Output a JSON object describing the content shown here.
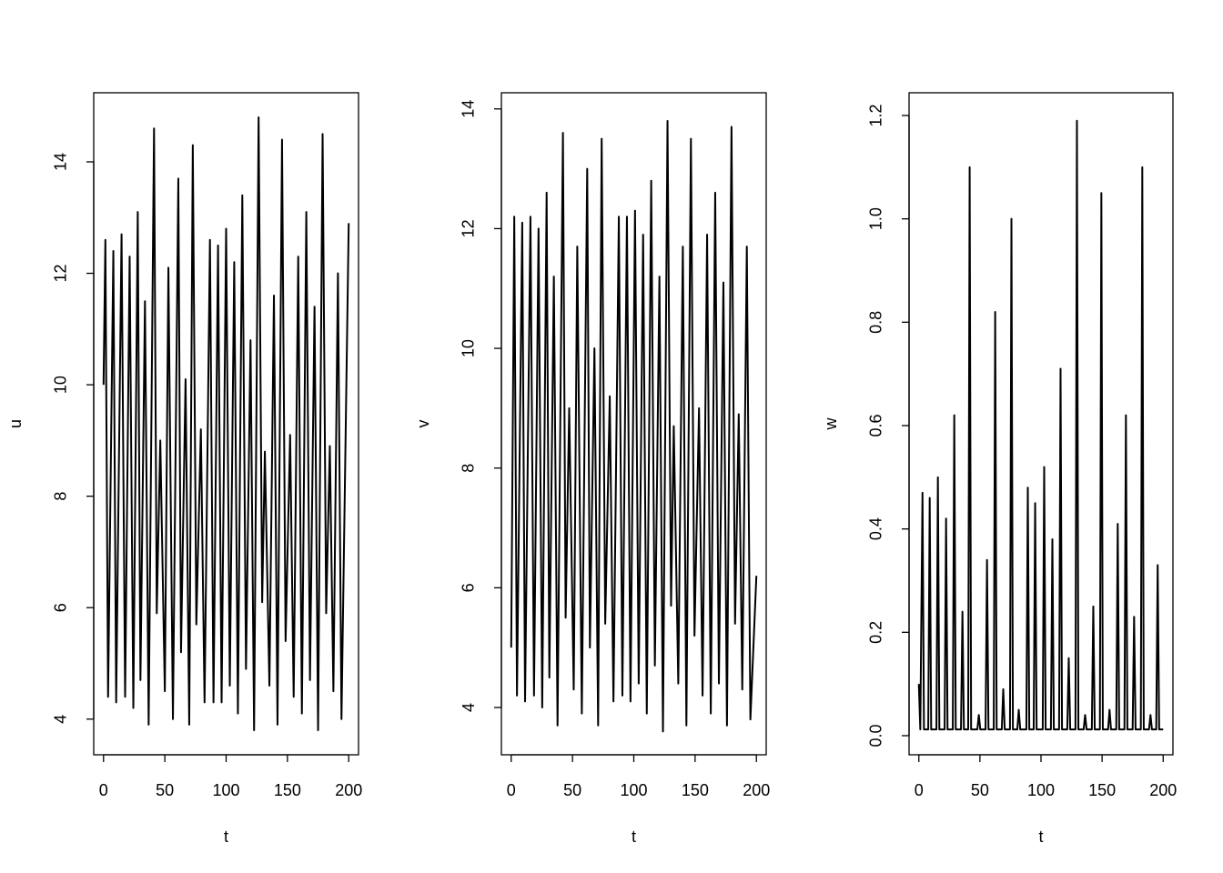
{
  "chart_data": [
    {
      "type": "line",
      "xlabel": "t",
      "ylabel": "u",
      "color": "#000000",
      "xlim": [
        -8,
        208
      ],
      "ylim": [
        3.36,
        15.24
      ],
      "xticks": [
        0,
        50,
        100,
        150,
        200
      ],
      "yticks": [
        4,
        6,
        8,
        10,
        12,
        14
      ],
      "x": [
        0,
        1.5,
        3.7,
        8,
        10.3,
        14.7,
        17.6,
        21.3,
        24.3,
        27.9,
        30.1,
        33.8,
        36.8,
        41.2,
        43.4,
        46.3,
        50,
        52.9,
        56.6,
        61,
        63.2,
        66.9,
        69.9,
        72.8,
        75.7,
        79.4,
        82.4,
        86.8,
        89.7,
        93.4,
        96.3,
        100,
        103,
        106.6,
        109.6,
        113.2,
        116.2,
        119.9,
        122.8,
        126.5,
        129.4,
        131.6,
        135.3,
        139,
        141.9,
        145.6,
        148.5,
        152.2,
        155.1,
        158.8,
        161.8,
        165.4,
        168.4,
        172.1,
        175,
        178.7,
        181.6,
        184.6,
        187.5,
        191.2,
        194.1,
        200
      ],
      "values": [
        10,
        12.6,
        4.4,
        12.4,
        4.3,
        12.7,
        4.4,
        12.3,
        4.2,
        13.1,
        4.7,
        11.5,
        3.9,
        14.6,
        5.9,
        9.0,
        4.5,
        12.1,
        4.0,
        13.7,
        5.2,
        10.1,
        3.9,
        14.3,
        5.7,
        9.2,
        4.3,
        12.6,
        4.3,
        12.5,
        4.3,
        12.8,
        4.6,
        12.2,
        4.1,
        13.4,
        4.9,
        10.8,
        3.8,
        14.8,
        6.1,
        8.8,
        4.6,
        11.6,
        3.9,
        14.4,
        5.4,
        9.1,
        4.4,
        12.3,
        4.1,
        13.1,
        4.7,
        11.4,
        3.8,
        14.5,
        5.9,
        8.9,
        4.5,
        12.0,
        4.0,
        12.9
      ]
    },
    {
      "type": "line",
      "xlabel": "t",
      "ylabel": "v",
      "color": "#000000",
      "xlim": [
        -8,
        208
      ],
      "ylim": [
        3.21,
        14.27
      ],
      "xticks": [
        0,
        50,
        100,
        150,
        200
      ],
      "yticks": [
        4,
        6,
        8,
        10,
        12,
        14
      ],
      "x": [
        0,
        2.5,
        4.7,
        9,
        11.3,
        15.7,
        18.6,
        22.3,
        25.3,
        28.9,
        31.1,
        34.8,
        37.8,
        42.2,
        44.4,
        47.3,
        51,
        53.9,
        57.6,
        62,
        64.2,
        67.9,
        70.9,
        73.8,
        76.7,
        80.4,
        83.4,
        87.8,
        90.7,
        94.4,
        97.3,
        101,
        104,
        107.6,
        110.6,
        114.2,
        117.2,
        120.9,
        123.8,
        127.5,
        130.4,
        132.6,
        136.3,
        140,
        142.9,
        146.6,
        149.5,
        153.2,
        156.1,
        159.8,
        162.8,
        166.4,
        169.4,
        173.1,
        176,
        179.7,
        182.6,
        185.6,
        188.5,
        192.2,
        195.1,
        200
      ],
      "values": [
        5,
        12.2,
        4.2,
        12.1,
        4.1,
        12.2,
        4.2,
        12.0,
        4.0,
        12.6,
        4.5,
        11.2,
        3.7,
        13.6,
        5.5,
        9.0,
        4.3,
        11.7,
        3.9,
        13.0,
        5.0,
        10.0,
        3.7,
        13.5,
        5.4,
        9.2,
        4.1,
        12.2,
        4.2,
        12.2,
        4.1,
        12.3,
        4.4,
        11.9,
        3.9,
        12.8,
        4.7,
        11.2,
        3.6,
        13.8,
        5.7,
        8.7,
        4.4,
        11.7,
        3.7,
        13.5,
        5.2,
        9.0,
        4.2,
        11.9,
        3.9,
        12.6,
        4.4,
        11.1,
        3.7,
        13.7,
        5.4,
        8.9,
        4.3,
        11.7,
        3.8,
        6.2
      ]
    },
    {
      "type": "line",
      "xlabel": "t",
      "ylabel": "w",
      "color": "#000000",
      "xlim": [
        -8,
        208
      ],
      "ylim": [
        -0.037,
        1.244
      ],
      "xticks": [
        0,
        50,
        100,
        150,
        200
      ],
      "yticks": [
        {
          "value": 0,
          "label": "0.0"
        },
        0.2,
        0.4,
        0.6,
        0.8,
        {
          "value": 1,
          "label": "1.0"
        },
        1.2
      ],
      "x": [
        0,
        1.2,
        3.0,
        4.2,
        7.7,
        8.9,
        10.1,
        14.4,
        15.6,
        16.8,
        21.1,
        22.3,
        23.5,
        27.8,
        29,
        30.2,
        34.5,
        35.7,
        36.9,
        40.4,
        41.6,
        42.8,
        47.9,
        49.1,
        50.3,
        54.6,
        55.8,
        57,
        61.3,
        62.5,
        63.7,
        67.9,
        69.1,
        70.3,
        74.6,
        75.8,
        77,
        80.6,
        81.8,
        83,
        88,
        89.2,
        90.4,
        94,
        95.2,
        96.4,
        101.4,
        102.6,
        103.8,
        108.1,
        109.3,
        110.5,
        114.8,
        116,
        117.2,
        121.5,
        122.7,
        123.9,
        128.2,
        129.4,
        130.6,
        134.9,
        136.1,
        137.3,
        141.6,
        142.8,
        144,
        148.2,
        149.4,
        150.6,
        154.9,
        156.1,
        157.3,
        161.6,
        162.8,
        164,
        168.3,
        169.5,
        170.7,
        175,
        176.2,
        177.4,
        181.7,
        182.9,
        184.1,
        188.4,
        189.6,
        190.8,
        194.3,
        195.5,
        196.7,
        200
      ],
      "values": [
        0.1,
        0.012,
        0.47,
        0.012,
        0.012,
        0.46,
        0.012,
        0.012,
        0.5,
        0.012,
        0.012,
        0.42,
        0.012,
        0.012,
        0.62,
        0.012,
        0.012,
        0.24,
        0.012,
        0.012,
        1.1,
        0.012,
        0.012,
        0.04,
        0.012,
        0.012,
        0.34,
        0.012,
        0.012,
        0.82,
        0.012,
        0.012,
        0.09,
        0.012,
        0.012,
        1.0,
        0.012,
        0.012,
        0.05,
        0.012,
        0.012,
        0.48,
        0.012,
        0.012,
        0.45,
        0.012,
        0.012,
        0.52,
        0.012,
        0.012,
        0.38,
        0.012,
        0.012,
        0.71,
        0.012,
        0.012,
        0.15,
        0.012,
        0.012,
        1.19,
        0.012,
        0.012,
        0.04,
        0.012,
        0.012,
        0.25,
        0.012,
        0.012,
        1.05,
        0.012,
        0.012,
        0.05,
        0.012,
        0.012,
        0.41,
        0.012,
        0.012,
        0.62,
        0.012,
        0.012,
        0.23,
        0.012,
        0.012,
        1.1,
        0.012,
        0.012,
        0.04,
        0.012,
        0.012,
        0.33,
        0.012,
        0.012
      ]
    }
  ]
}
